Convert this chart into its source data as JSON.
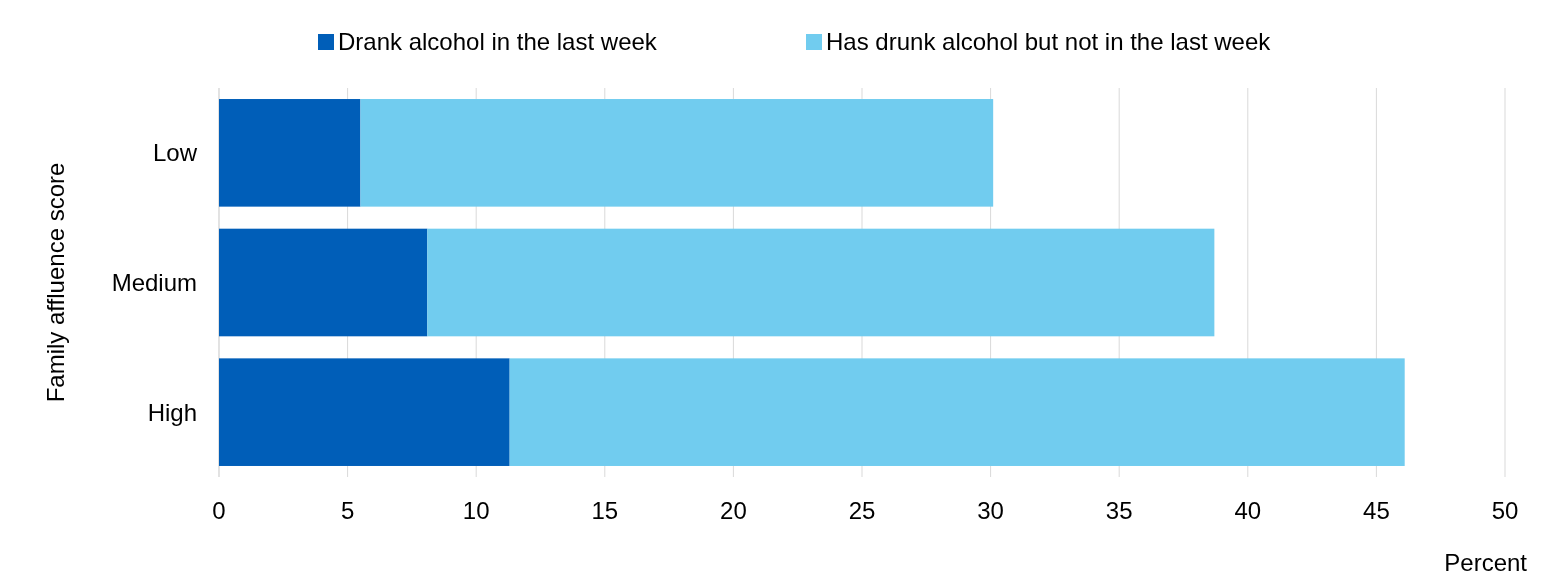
{
  "chart_data": {
    "type": "bar",
    "orientation": "horizontal",
    "stacked": true,
    "categories": [
      "Low",
      "Medium",
      "High"
    ],
    "series": [
      {
        "name": "Drank alcohol in the last week",
        "color": "#005eb8",
        "values": [
          5.5,
          8.1,
          11.3
        ]
      },
      {
        "name": "Has drunk alcohol but not in the last week",
        "color": "#71ccef",
        "values": [
          24.6,
          30.6,
          34.8
        ]
      }
    ],
    "xlim": [
      0,
      50
    ],
    "xticks": [
      0,
      5,
      10,
      15,
      20,
      25,
      30,
      35,
      40,
      45,
      50
    ],
    "grid": "x",
    "legend": "top",
    "xlabel": "Percent",
    "ylabel": "Family affluence score"
  }
}
